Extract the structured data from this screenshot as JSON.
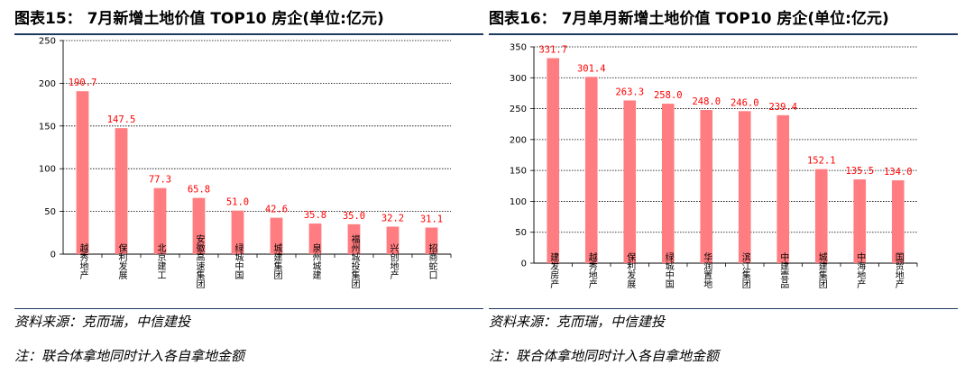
{
  "chart_data": [
    {
      "type": "bar",
      "title": "图表15： 7月新增土地价值 TOP10 房企(单位:亿元)",
      "source": "资料来源：克而瑞，中信建投",
      "note": "注：联合体拿地同时计入各自拿地金额",
      "categories": [
        "越秀地产",
        "保利发展",
        "北京建工",
        "安徽高速集团",
        "绿城中国",
        "城建集团",
        "泉州城建",
        "福州城投集团",
        "兴创地产",
        "招商蛇口"
      ],
      "values": [
        190.7,
        147.5,
        77.3,
        65.8,
        51.0,
        42.6,
        35.8,
        35.0,
        32.2,
        31.1
      ],
      "value_labels": [
        "190.7",
        "147.5",
        "77.3",
        "65.8",
        "51.0",
        "42.6",
        "35.8",
        "35.0",
        "32.2",
        "31.1"
      ],
      "ylim": [
        0,
        250
      ],
      "yticks": [
        0,
        50,
        100,
        150,
        200,
        250
      ],
      "grid": true,
      "bar_color": "#ff7c80",
      "label_color": "#ff0000"
    },
    {
      "type": "bar",
      "title": "图表16： 7月单月新增土地价值 TOP10 房企(单位:亿元)",
      "source": "资料来源：克而瑞，中信建投",
      "note": "注：联合体拿地同时计入各自拿地金额",
      "categories": [
        "建发房产",
        "越秀地产",
        "保利发展",
        "绿城中国",
        "华润置地",
        "滨江集团",
        "中建壹品",
        "城建集团",
        "中海地产",
        "国贸地产"
      ],
      "values": [
        331.7,
        301.4,
        263.3,
        258.0,
        248.0,
        246.0,
        239.4,
        152.1,
        135.5,
        134.0
      ],
      "value_labels": [
        "331.7",
        "301.4",
        "263.3",
        "258.0",
        "248.0",
        "246.0",
        "239.4",
        "152.1",
        "135.5",
        "134.0"
      ],
      "ylim": [
        0,
        350
      ],
      "yticks": [
        0,
        50,
        100,
        150,
        200,
        250,
        300,
        350
      ],
      "grid": true,
      "bar_color": "#ff7c80",
      "label_color": "#ff0000"
    }
  ]
}
